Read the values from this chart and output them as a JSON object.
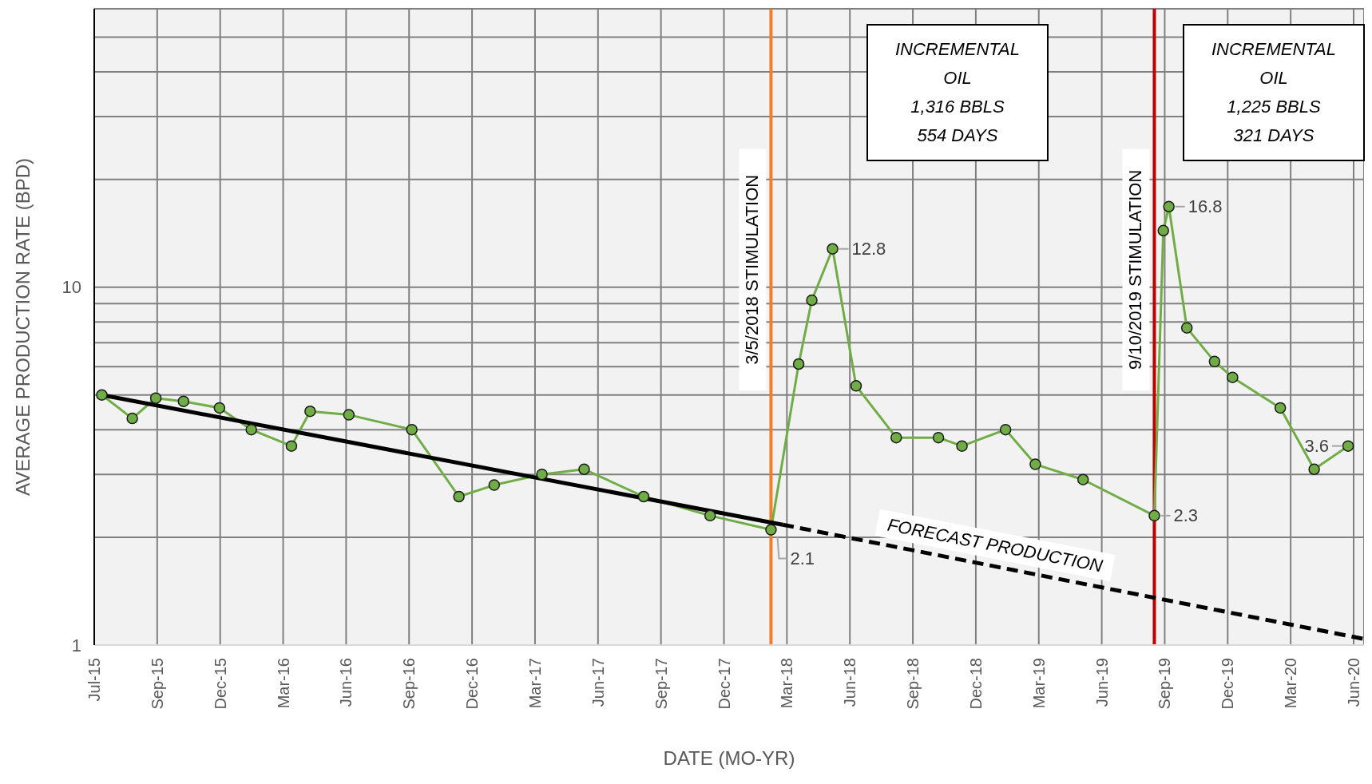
{
  "chart_data": {
    "type": "line",
    "xlabel": "DATE (MO-YR)",
    "ylabel": "AVERAGE PRODUCTION RATE (BPD)",
    "log": "y",
    "grid": true,
    "xlim": [
      "2015-07-01",
      "2020-07-09"
    ],
    "xticks": [
      {
        "value": "2015-07-01",
        "label": "Jul-15"
      },
      {
        "value": "2015-09-30",
        "label": "Sep-15"
      },
      {
        "value": "2015-12-30",
        "label": "Dec-15"
      },
      {
        "value": "2016-03-30",
        "label": "Mar-16"
      },
      {
        "value": "2016-06-29",
        "label": "Jun-16"
      },
      {
        "value": "2016-09-28",
        "label": "Sep-16"
      },
      {
        "value": "2016-12-28",
        "label": "Dec-16"
      },
      {
        "value": "2017-03-29",
        "label": "Mar-17"
      },
      {
        "value": "2017-06-28",
        "label": "Jun-17"
      },
      {
        "value": "2017-09-27",
        "label": "Sep-17"
      },
      {
        "value": "2017-12-27",
        "label": "Dec-17"
      },
      {
        "value": "2018-03-28",
        "label": "Mar-18"
      },
      {
        "value": "2018-06-27",
        "label": "Jun-18"
      },
      {
        "value": "2018-09-26",
        "label": "Sep-18"
      },
      {
        "value": "2018-12-26",
        "label": "Dec-18"
      },
      {
        "value": "2019-03-27",
        "label": "Mar-19"
      },
      {
        "value": "2019-06-26",
        "label": "Jun-19"
      },
      {
        "value": "2019-09-25",
        "label": "Sep-19"
      },
      {
        "value": "2019-12-25",
        "label": "Dec-19"
      },
      {
        "value": "2020-03-25",
        "label": "Mar-20"
      },
      {
        "value": "2020-06-24",
        "label": "Jun-20"
      }
    ],
    "ylim": [
      1,
      60
    ],
    "yticks": [
      1,
      {
        "value": 2,
        "label": null
      },
      {
        "value": 3,
        "label": null
      },
      {
        "value": 4,
        "label": null
      },
      {
        "value": 5,
        "label": null
      },
      {
        "value": 6,
        "label": null
      },
      {
        "value": 7,
        "label": null
      },
      {
        "value": 8,
        "label": null
      },
      {
        "value": 9,
        "label": null
      },
      10,
      {
        "value": 20,
        "label": null
      },
      {
        "value": 30,
        "label": null
      },
      {
        "value": 40,
        "label": null
      },
      {
        "value": 50,
        "label": null
      },
      {
        "value": 60,
        "label": null
      }
    ],
    "series": [
      {
        "color": "#70ad47",
        "marker": "circle",
        "line_style": "solid",
        "x": [
          "2015-07-12",
          "2015-08-25",
          "2015-09-28",
          "2015-11-07",
          "2015-12-29",
          "2016-02-13",
          "2016-04-11",
          "2016-05-08",
          "2016-07-03",
          "2016-10-02",
          "2016-12-09",
          "2017-01-29",
          "2017-04-08",
          "2017-06-08",
          "2017-09-02",
          "2017-12-07",
          "2018-03-05",
          "2018-04-14",
          "2018-05-03",
          "2018-06-02",
          "2018-07-06",
          "2018-09-02",
          "2018-11-02",
          "2018-12-06",
          "2019-02-07",
          "2019-03-22",
          "2019-05-30",
          "2019-09-10",
          "2019-09-23",
          "2019-10-01",
          "2019-10-27",
          "2019-12-06",
          "2020-01-01",
          "2020-03-10",
          "2020-04-28",
          "2020-06-16"
        ],
        "values": [
          5.0,
          4.3,
          4.9,
          4.8,
          4.6,
          4.0,
          3.6,
          4.5,
          4.4,
          4.0,
          2.6,
          2.8,
          3.0,
          3.1,
          2.6,
          2.3,
          2.1,
          6.1,
          9.2,
          12.8,
          5.3,
          3.8,
          3.8,
          3.6,
          4.0,
          3.2,
          2.9,
          2.3,
          14.4,
          16.8,
          7.7,
          6.2,
          5.6,
          4.6,
          3.1,
          3.6
        ],
        "value_labels": [
          null,
          null,
          null,
          null,
          null,
          null,
          null,
          null,
          null,
          null,
          null,
          null,
          null,
          null,
          null,
          null,
          "2.1",
          null,
          null,
          "12.8",
          null,
          null,
          null,
          null,
          null,
          null,
          null,
          "2.3",
          null,
          "16.8",
          null,
          null,
          null,
          null,
          null,
          "3.6"
        ]
      },
      {
        "color": "#000000",
        "marker": "none",
        "line_style": "solid",
        "x": [
          "2015-07-12",
          "2018-03-22"
        ],
        "values": [
          5.0,
          2.17
        ]
      },
      {
        "color": "#000000",
        "marker": "none",
        "line_style": "dashed",
        "x": [
          "2018-03-22",
          "2020-07-09"
        ],
        "values": [
          2.17,
          1.04
        ]
      }
    ],
    "ref_lines": [
      {
        "axis": "x",
        "value": "2018-03-05",
        "label": "3/5/2018  STIMULATION",
        "color": "#f07f2a"
      },
      {
        "axis": "x",
        "value": "2019-09-10",
        "label": "9/10/2019 STIMULATION",
        "color": "#c00000"
      }
    ],
    "annotations": [
      "INCREMENTAL\nOIL\n1,316 BBLS\n554 DAYS",
      "INCREMENTAL\nOIL\n1,225 BBLS\n321 DAYS",
      "FORECAST PRODUCTION"
    ]
  }
}
